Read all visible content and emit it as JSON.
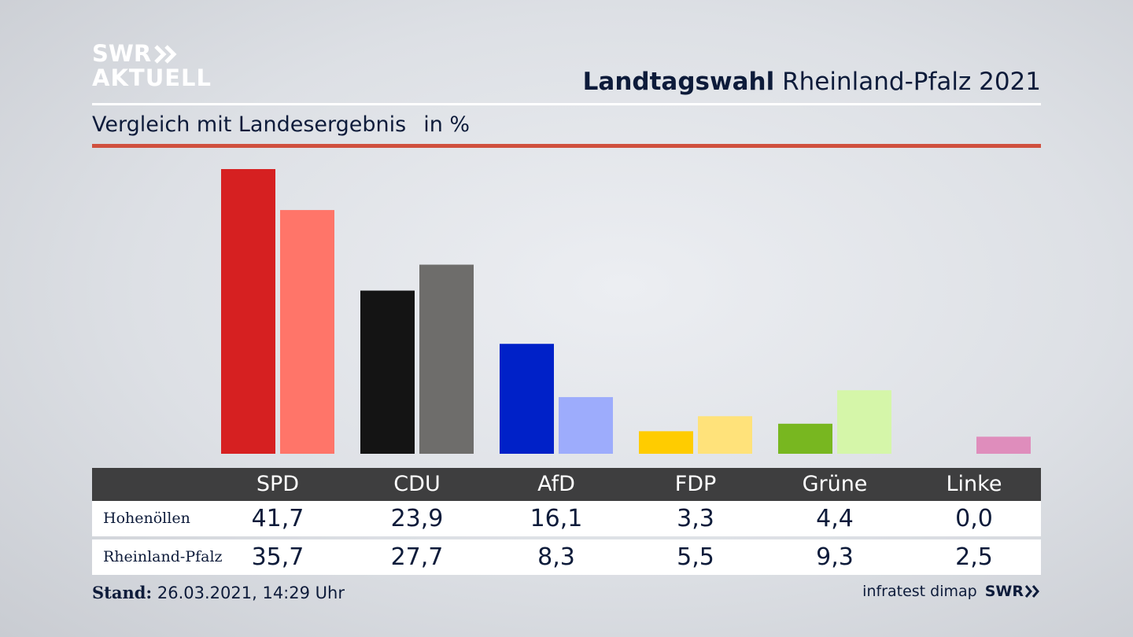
{
  "brand": {
    "line1": "SWR",
    "line2": "AKTUELL"
  },
  "header": {
    "title_bold": "Landtagswahl",
    "title_rest": "Rheinland-Pfalz 2021"
  },
  "subtitle": {
    "text": "Vergleich mit Landesergebnis",
    "unit": "in %"
  },
  "chart_data": {
    "type": "bar",
    "categories": [
      "SPD",
      "CDU",
      "AfD",
      "FDP",
      "Grüne",
      "Linke"
    ],
    "series": [
      {
        "name": "Hohenöllen",
        "values": [
          41.7,
          23.9,
          16.1,
          3.3,
          4.4,
          0.0
        ],
        "colors": [
          "#d62021",
          "#141414",
          "#0021c8",
          "#ffcc00",
          "#78b720",
          "#d65fa8"
        ]
      },
      {
        "name": "Rheinland-Pfalz",
        "values": [
          35.7,
          27.7,
          8.3,
          5.5,
          9.3,
          2.5
        ],
        "colors": [
          "#ff7569",
          "#6e6d6b",
          "#9dacfc",
          "#ffe27a",
          "#d5f6a9",
          "#df8dbc"
        ]
      }
    ]
  },
  "table": {
    "headers": [
      "SPD",
      "CDU",
      "AfD",
      "FDP",
      "Grüne",
      "Linke"
    ],
    "rows": [
      {
        "label": "Hohenöllen",
        "values": [
          "41,7",
          "23,9",
          "16,1",
          "3,3",
          "4,4",
          "0,0"
        ]
      },
      {
        "label": "Rheinland-Pfalz",
        "values": [
          "35,7",
          "27,7",
          "8,3",
          "5,5",
          "9,3",
          "2,5"
        ]
      }
    ]
  },
  "footer": {
    "stand_label": "Stand:",
    "stand_value": "26.03.2021, 14:29 Uhr",
    "source": "infratest dimap",
    "brand": "SWR"
  }
}
